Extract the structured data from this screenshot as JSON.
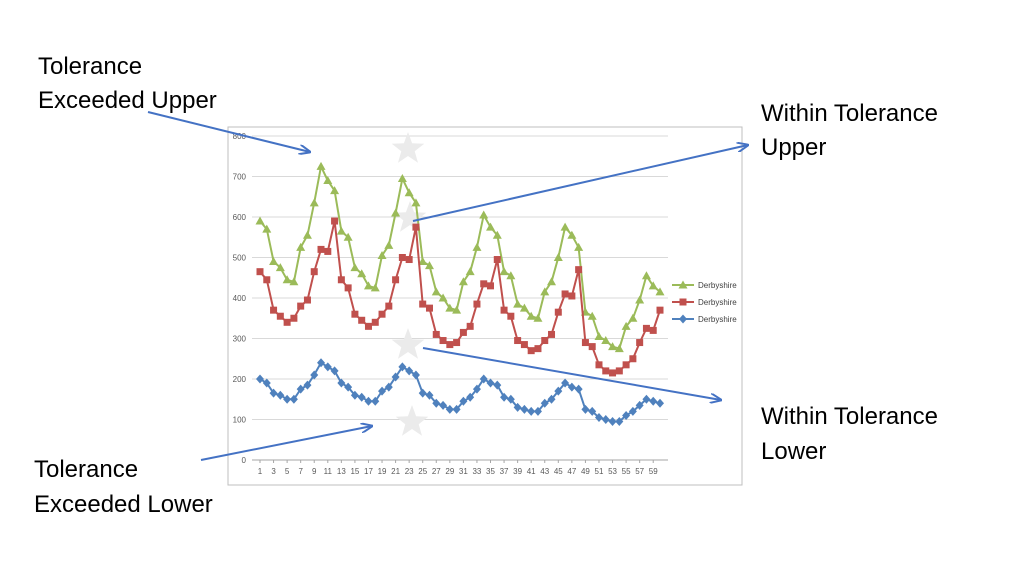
{
  "annotations": {
    "exceeded_upper": [
      "Tolerance",
      "Exceeded Upper"
    ],
    "within_upper": [
      "Within Tolerance",
      "Upper"
    ],
    "within_lower": [
      "Within Tolerance",
      "Lower"
    ],
    "exceeded_lower": [
      "Tolerance",
      "Exceeded Lower"
    ]
  },
  "chart_data": {
    "type": "line",
    "x": [
      1,
      2,
      3,
      4,
      5,
      6,
      7,
      8,
      9,
      10,
      11,
      12,
      13,
      14,
      15,
      16,
      17,
      18,
      19,
      20,
      21,
      22,
      23,
      24,
      25,
      26,
      27,
      28,
      29,
      30,
      31,
      32,
      33,
      34,
      35,
      36,
      37,
      38,
      39,
      40,
      41,
      42,
      43,
      44,
      45,
      46,
      47,
      48,
      49,
      50,
      51,
      52,
      53,
      54,
      55,
      56,
      57,
      58,
      59,
      60
    ],
    "x_tick_labels": [
      "1",
      "3",
      "5",
      "7",
      "9",
      "11",
      "13",
      "15",
      "17",
      "19",
      "21",
      "23",
      "25",
      "27",
      "29",
      "31",
      "33",
      "35",
      "37",
      "39",
      "41",
      "43",
      "45",
      "47",
      "49",
      "51",
      "53",
      "55",
      "57",
      "59"
    ],
    "ylim": [
      0,
      800
    ],
    "y_ticks": [
      0,
      100,
      200,
      300,
      400,
      500,
      600,
      700,
      800
    ],
    "grid": true,
    "legend_position": "right",
    "series": [
      {
        "name": "Derbyshire",
        "color": "#9BBB59",
        "marker": "triangle",
        "values": [
          590,
          570,
          490,
          475,
          445,
          440,
          525,
          555,
          635,
          725,
          690,
          665,
          565,
          550,
          475,
          460,
          430,
          425,
          505,
          530,
          610,
          695,
          660,
          635,
          490,
          480,
          415,
          400,
          375,
          370,
          440,
          465,
          525,
          605,
          575,
          555,
          465,
          455,
          385,
          375,
          355,
          350,
          415,
          440,
          500,
          575,
          555,
          525,
          365,
          355,
          305,
          295,
          280,
          275,
          330,
          350,
          395,
          455,
          430,
          415
        ]
      },
      {
        "name": "Derbyshire",
        "color": "#C0504D",
        "marker": "square",
        "values": [
          465,
          445,
          370,
          355,
          340,
          350,
          380,
          395,
          465,
          520,
          515,
          590,
          445,
          425,
          360,
          345,
          330,
          340,
          360,
          380,
          445,
          500,
          495,
          575,
          385,
          375,
          310,
          295,
          285,
          290,
          315,
          330,
          385,
          435,
          430,
          495,
          370,
          355,
          295,
          285,
          270,
          275,
          295,
          310,
          365,
          410,
          405,
          470,
          290,
          280,
          235,
          220,
          215,
          220,
          235,
          250,
          290,
          325,
          320,
          370
        ]
      },
      {
        "name": "Derbyshire",
        "color": "#4F81BD",
        "marker": "diamond",
        "values": [
          200,
          190,
          165,
          160,
          150,
          150,
          175,
          185,
          210,
          240,
          230,
          220,
          190,
          180,
          160,
          155,
          145,
          145,
          170,
          180,
          205,
          230,
          220,
          210,
          165,
          160,
          140,
          135,
          125,
          125,
          145,
          155,
          175,
          200,
          190,
          185,
          155,
          150,
          130,
          125,
          120,
          120,
          140,
          150,
          170,
          190,
          180,
          175,
          125,
          120,
          105,
          100,
          95,
          95,
          110,
          120,
          135,
          150,
          145,
          140
        ]
      }
    ]
  }
}
